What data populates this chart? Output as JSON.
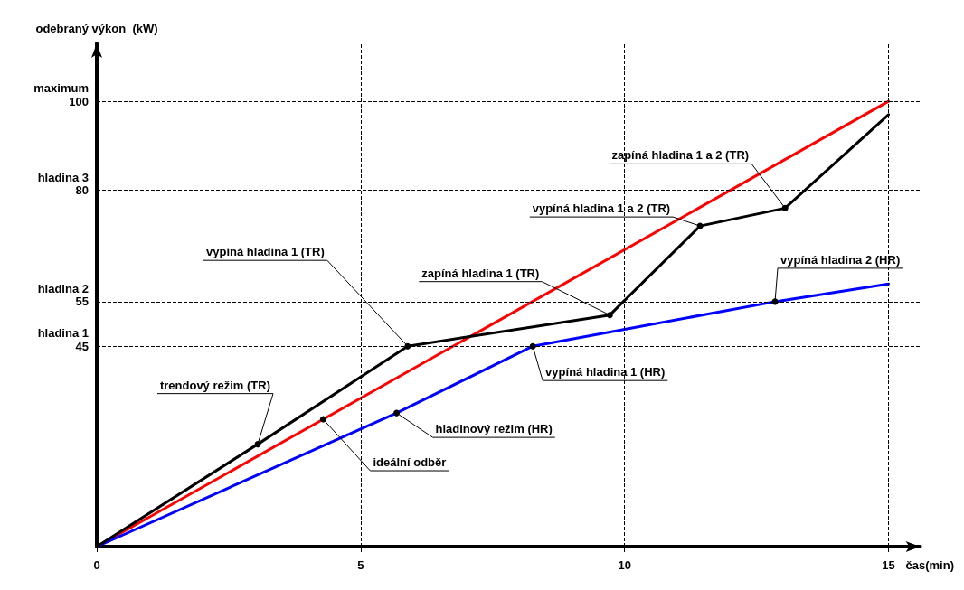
{
  "chart_data": {
    "type": "line",
    "xlabel": "čas(min)",
    "ylabel": "odebraný výkon  (kW)",
    "xlim": [
      0,
      15.6
    ],
    "ylim": [
      0,
      113
    ],
    "xticks": [
      0,
      5,
      10,
      15
    ],
    "yticks": [
      45,
      55,
      80,
      100
    ],
    "marker": "none",
    "line_style": "solid",
    "series": [
      {
        "color": "#ff0000",
        "x": [
          0,
          15
        ],
        "values": [
          0,
          100
        ]
      },
      {
        "color": "#0000ff",
        "x": [
          0,
          5.68,
          8.26,
          12.85,
          15
        ],
        "values": [
          0,
          30,
          45,
          55,
          59
        ]
      },
      {
        "color": "#000000",
        "x": [
          0,
          3.05,
          5.89,
          9.72,
          11.43,
          13.04,
          15
        ],
        "values": [
          0,
          23,
          45,
          52,
          72,
          76,
          97
        ]
      }
    ],
    "ref_lines": [
      {
        "axis": "y",
        "value": 45,
        "label": "hladina 1",
        "line_style": "dashed",
        "color": "#000000"
      },
      {
        "axis": "y",
        "value": 55,
        "label": "hladina 2",
        "line_style": "dashed",
        "color": "#000000"
      },
      {
        "axis": "y",
        "value": 80,
        "label": "hladina 3",
        "line_style": "dashed",
        "color": "#000000"
      },
      {
        "axis": "y",
        "value": 100,
        "label": "maximum",
        "line_style": "dashed",
        "color": "#000000"
      },
      {
        "axis": "x",
        "value": 5,
        "line_style": "dashed",
        "color": "#000000"
      },
      {
        "axis": "x",
        "value": 10,
        "line_style": "dashed",
        "color": "#000000"
      },
      {
        "axis": "x",
        "value": 15,
        "line_style": "dashed",
        "color": "#000000"
      }
    ],
    "annotations": [
      {
        "text": "trendový režim (TR)",
        "x": 3.05,
        "y": 23
      },
      {
        "text": "ideální odběr",
        "x": 4.29,
        "y": 28.6
      },
      {
        "text": "hladinový režim (HR)",
        "x": 5.68,
        "y": 30
      },
      {
        "text": "vypíná hladina 1 (TR)",
        "x": 5.89,
        "y": 45
      },
      {
        "text": "vypíná hladina 1 (HR)",
        "x": 8.26,
        "y": 45
      },
      {
        "text": "zapíná hladina 1 (TR)",
        "x": 9.72,
        "y": 52
      },
      {
        "text": "vypíná hladina 1 a 2 (TR)",
        "x": 11.43,
        "y": 72
      },
      {
        "text": "zapíná hladina 1 a 2 (TR)",
        "x": 13.04,
        "y": 76
      },
      {
        "text": "vypíná hladina 2 (HR)",
        "x": 12.85,
        "y": 55
      }
    ]
  }
}
